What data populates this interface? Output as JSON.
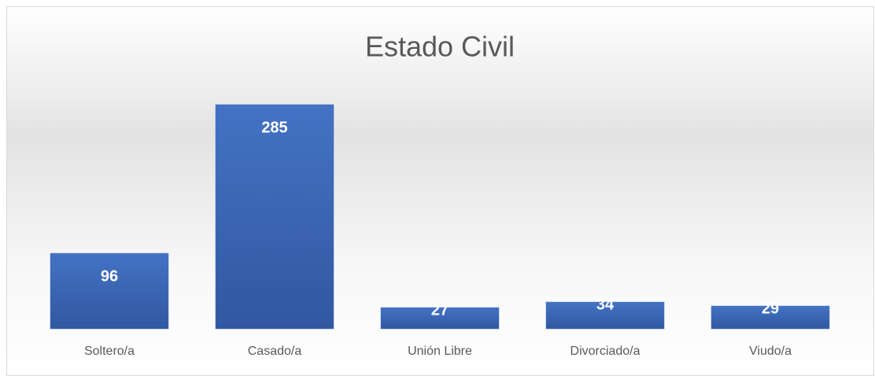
{
  "chart_data": {
    "type": "bar",
    "title": "Estado Civil",
    "categories": [
      "Soltero/a",
      "Casado/a",
      "Unión Libre",
      "Divorciado/a",
      "Viudo/a"
    ],
    "values": [
      96,
      285,
      27,
      34,
      29
    ],
    "color": "#4472c4"
  }
}
